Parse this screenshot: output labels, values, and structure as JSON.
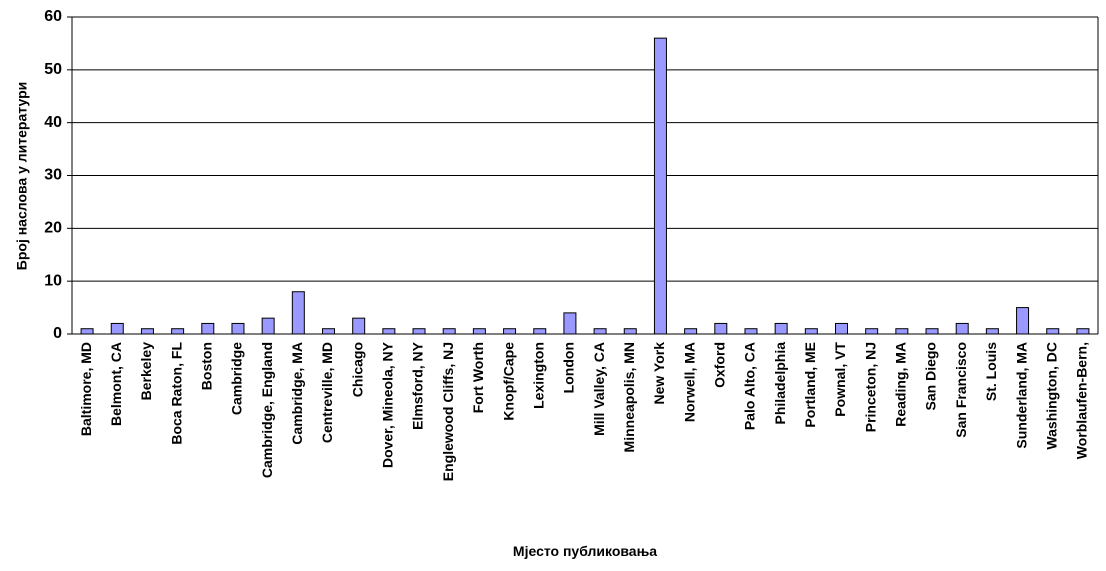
{
  "chart_data": {
    "type": "bar",
    "x_label": "Мјесто публиковања",
    "y_label": "Број наслова у литератури",
    "categories": [
      "Baltimore, MD",
      "Belmont, CA",
      "Berkeley",
      "Boca Raton, FL",
      "Boston",
      "Cambridge",
      "Cambridge, England",
      "Cambridge, MA",
      "Centreville, MD",
      "Chicago",
      "Dover, Mineola, NY",
      "Elmsford, NY",
      "Englewood Cliffs, NJ",
      "Fort Worth",
      "Knopf/Cape",
      "Lexington",
      "London",
      "Mill Valley, CA",
      "Minneapolis, MN",
      "New York",
      "Norwell, MA",
      "Oxford",
      "Palo Alto, CA",
      "Philadelphia",
      "Portland, ME",
      "Pownal, VT",
      "Princeton, NJ",
      "Reading, MA",
      "San Diego",
      "San Francisco",
      "St. Louis",
      "Sunderland, MA",
      "Washington, DC",
      "Worblaufen-Bern,"
    ],
    "values": [
      1,
      2,
      1,
      1,
      2,
      2,
      3,
      8,
      1,
      3,
      1,
      1,
      1,
      1,
      1,
      1,
      4,
      1,
      1,
      56,
      1,
      2,
      1,
      2,
      1,
      2,
      1,
      1,
      1,
      2,
      1,
      5,
      1,
      1
    ],
    "color": "#9999ff",
    "ylim": [
      0,
      60
    ],
    "yticks": [
      0,
      10,
      20,
      30,
      40,
      50,
      60
    ],
    "grid": true
  }
}
